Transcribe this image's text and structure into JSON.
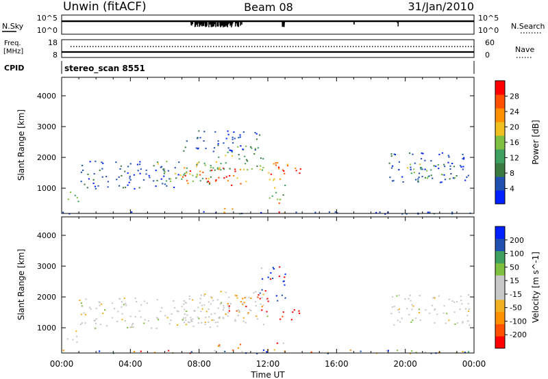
{
  "header": {
    "title": "Unwin (fitACF)",
    "beam": "Beam 08",
    "date": "31/Jan/2010"
  },
  "strip_noise": {
    "left_label": "N.Sky",
    "left_ticks": [
      "10^5",
      "10^0"
    ],
    "right_ticks": [
      "10^5",
      "10^0"
    ],
    "right_label": "N.Search"
  },
  "strip_freq": {
    "left_label_top": "Freq.",
    "left_label_bottom": "[MHz]",
    "left_ticks": [
      "18",
      "8"
    ],
    "right_ticks": [
      "60",
      "0"
    ],
    "right_label": "Nave"
  },
  "strip_cpid": {
    "left_label": "CPID",
    "program": "stereo_scan 8551"
  },
  "time_axis": {
    "tick_labels": [
      "00:00",
      "04:00",
      "08:00",
      "12:00",
      "16:00",
      "20:00",
      "00:00"
    ],
    "label": "Time UT"
  },
  "chart_data": [
    {
      "type": "heatmap",
      "title": "",
      "xlabel": "",
      "ylabel": "Slant Range [km]",
      "x_range_hours": [
        0,
        24
      ],
      "ylim": [
        180,
        4600
      ],
      "yticks": [
        1000,
        2000,
        3000,
        4000
      ],
      "colorbar": {
        "label": "Power [dB]",
        "tick_labels": [
          "28",
          "24",
          "20",
          "16",
          "12",
          "8",
          "4"
        ],
        "range": [
          0,
          30
        ],
        "colors": [
          "#0020ff",
          "#2050b0",
          "#3a7a40",
          "#40a060",
          "#80c040",
          "#f0c020",
          "#ff9000",
          "#ff5000",
          "#ff0000"
        ]
      },
      "regions": [
        {
          "x0": 0.3,
          "x1": 1.0,
          "y0": 500,
          "y1": 1000,
          "level": "mid"
        },
        {
          "x0": 1.0,
          "x1": 7.0,
          "y0": 1000,
          "y1": 1900,
          "level": "low"
        },
        {
          "x0": 5.5,
          "x1": 9.0,
          "y0": 1100,
          "y1": 1900,
          "level": "mid"
        },
        {
          "x0": 7.0,
          "x1": 11.0,
          "y0": 1100,
          "y1": 1700,
          "level": "high"
        },
        {
          "x0": 9.0,
          "x1": 12.0,
          "y0": 1600,
          "y1": 2400,
          "level": "mid"
        },
        {
          "x0": 7.0,
          "x1": 11.5,
          "y0": 2200,
          "y1": 2900,
          "level": "low"
        },
        {
          "x0": 11.5,
          "x1": 14.0,
          "y0": 1300,
          "y1": 1900,
          "level": "high"
        },
        {
          "x0": 9.0,
          "x1": 10.0,
          "y0": 200,
          "y1": 450,
          "level": "high"
        },
        {
          "x0": 12.5,
          "x1": 13.0,
          "y0": 200,
          "y1": 600,
          "level": "high"
        },
        {
          "x0": 12.0,
          "x1": 13.0,
          "y0": 600,
          "y1": 1300,
          "level": "mid"
        },
        {
          "x0": 19.0,
          "x1": 23.8,
          "y0": 1200,
          "y1": 2200,
          "level": "low"
        },
        {
          "x0": 20.0,
          "x1": 23.0,
          "y0": 1300,
          "y1": 1800,
          "level": "mid"
        },
        {
          "x0": 0.0,
          "x1": 24.0,
          "y0": 180,
          "y1": 260,
          "level": "low"
        }
      ]
    },
    {
      "type": "heatmap",
      "title": "",
      "xlabel": "Time UT",
      "ylabel": "Slant Range [km]",
      "x_range_hours": [
        0,
        24
      ],
      "ylim": [
        180,
        4600
      ],
      "yticks": [
        1000,
        2000,
        3000,
        4000
      ],
      "colorbar": {
        "label": "Velocity [m s^-1]",
        "tick_labels": [
          "200",
          "100",
          "50",
          "15",
          "-15",
          "-50",
          "-100",
          "-200"
        ],
        "range": [
          -250,
          250
        ],
        "colors": [
          "#ff0000",
          "#ff5000",
          "#ff9000",
          "#f0b020",
          "#c8c8c8",
          "#c8c8c8",
          "#80c040",
          "#40a060",
          "#2050b0",
          "#0020ff"
        ]
      },
      "regions": [
        {
          "x0": 0.3,
          "x1": 1.0,
          "y0": 500,
          "y1": 1000,
          "level": "gray"
        },
        {
          "x0": 1.0,
          "x1": 9.5,
          "y0": 1000,
          "y1": 2000,
          "level": "gray"
        },
        {
          "x0": 7.0,
          "x1": 12.0,
          "y0": 1100,
          "y1": 2200,
          "level": "gray"
        },
        {
          "x0": 9.5,
          "x1": 12.0,
          "y0": 1500,
          "y1": 2100,
          "level": "neg"
        },
        {
          "x0": 11.5,
          "x1": 13.0,
          "y0": 1900,
          "y1": 3000,
          "level": "pos"
        },
        {
          "x0": 12.5,
          "x1": 14.0,
          "y0": 1200,
          "y1": 1600,
          "level": "strong_neg"
        },
        {
          "x0": 9.0,
          "x1": 10.5,
          "y0": 200,
          "y1": 500,
          "level": "neg"
        },
        {
          "x0": 12.5,
          "x1": 13.0,
          "y0": 200,
          "y1": 600,
          "level": "neg"
        },
        {
          "x0": 19.0,
          "x1": 23.8,
          "y0": 1100,
          "y1": 2100,
          "level": "gray"
        },
        {
          "x0": 0.0,
          "x1": 24.0,
          "y0": 180,
          "y1": 300,
          "level": "mixed"
        }
      ]
    }
  ]
}
